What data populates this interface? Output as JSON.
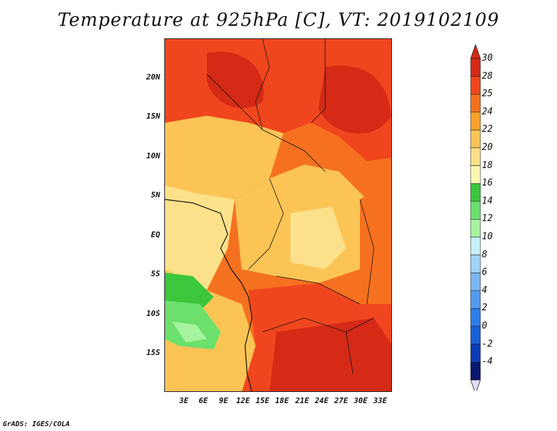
{
  "title": "Temperature at 925hPa [C], VT: 2019102109",
  "credit": "GrADS: IGES/COLA",
  "lat_labels": [
    "20N",
    "15N",
    "10N",
    "5N",
    "EQ",
    "5S",
    "10S",
    "15S"
  ],
  "lon_labels": [
    "3E",
    "6E",
    "9E",
    "12E",
    "15E",
    "18E",
    "21E",
    "24E",
    "27E",
    "30E",
    "33E"
  ],
  "colorbar": {
    "levels": [
      "30",
      "28",
      "25",
      "24",
      "22",
      "20",
      "18",
      "16",
      "14",
      "12",
      "10",
      "8",
      "6",
      "4",
      "2",
      "0",
      "-2",
      "-4"
    ],
    "colors": [
      "#d42a16",
      "#f0461e",
      "#f5711f",
      "#f8a12b",
      "#fbc455",
      "#fde18a",
      "#fdf7b0",
      "#3cc63c",
      "#6ce06c",
      "#a6f3a0",
      "#c8f0fa",
      "#a3d3f7",
      "#7ab6f3",
      "#539af0",
      "#2f7de8",
      "#1860d8",
      "#0a3cb5",
      "#09186e"
    ],
    "top_color": "#d42a16",
    "bottom_color": "#e1dcf8"
  },
  "palette": {
    "t30": "#d42a16",
    "t28": "#f0461e",
    "t25": "#f5711f",
    "t24": "#f8a12b",
    "t22": "#fbc455",
    "t20": "#fde18a",
    "t18": "#fdf7b0",
    "t16": "#3cc63c",
    "t14": "#6ce06c",
    "t12": "#a6f3a0"
  }
}
